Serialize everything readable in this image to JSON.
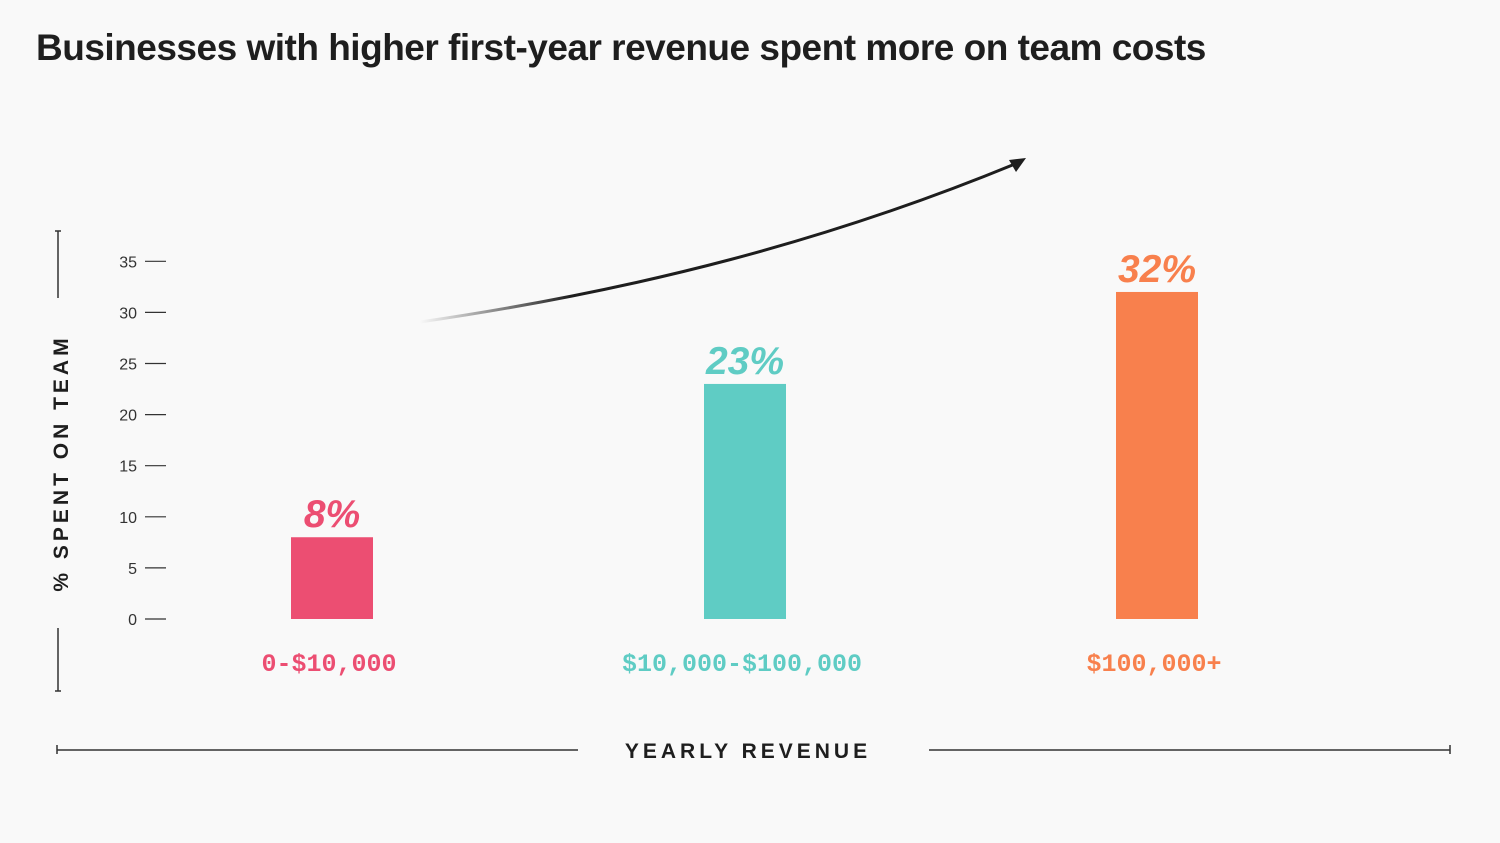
{
  "chart_data": {
    "type": "bar",
    "title": "Businesses with higher first-year revenue spent more on team costs",
    "xlabel": "YEARLY REVENUE",
    "ylabel": "% SPENT ON TEAM",
    "categories": [
      "0-$10,000",
      "$10,000-$100,000",
      "$100,000+"
    ],
    "values": [
      8,
      23,
      32
    ],
    "value_labels": [
      "8%",
      "23%",
      "32%"
    ],
    "colors": [
      "#ec4e72",
      "#5fccc4",
      "#f8804d"
    ],
    "yticks": [
      "0",
      "5",
      "10",
      "15",
      "20",
      "25",
      "30",
      "35"
    ],
    "ytick_values": [
      0,
      5,
      10,
      15,
      20,
      25,
      30,
      35
    ],
    "ylim": [
      0,
      35
    ],
    "trend_arrow": "upward",
    "grid": false
  }
}
